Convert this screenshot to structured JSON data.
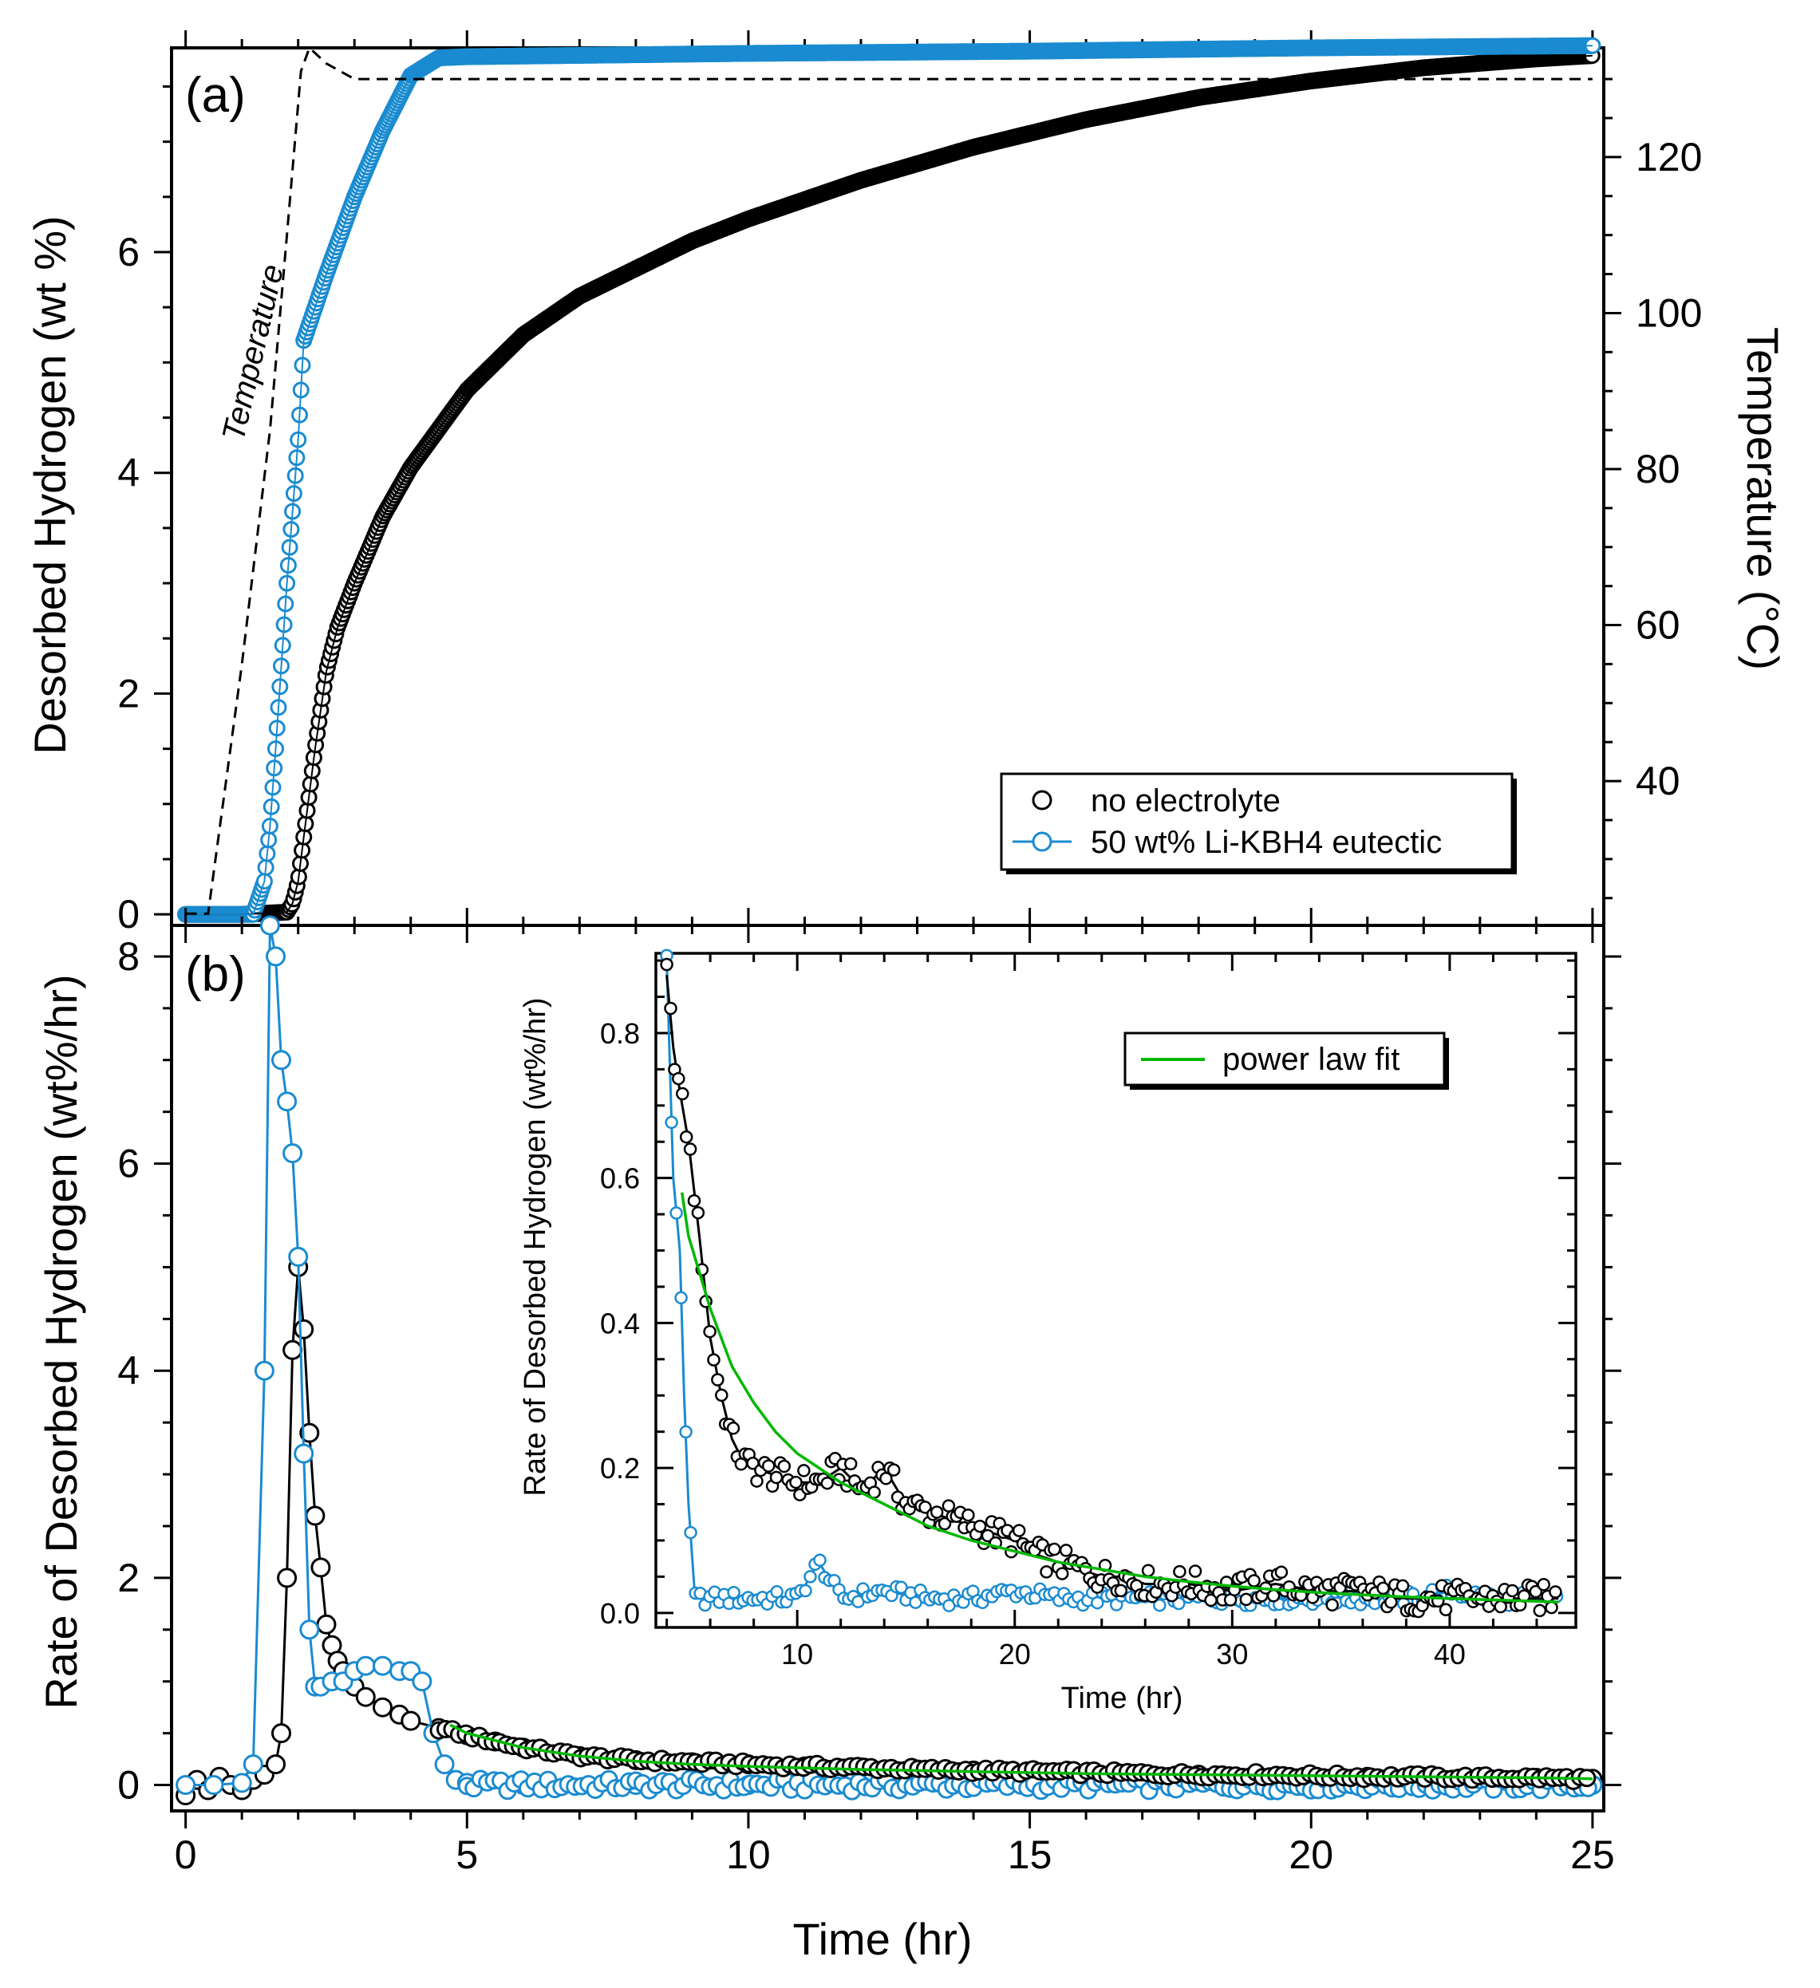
{
  "chart_data": [
    {
      "panel": "(a)",
      "type": "line",
      "xlabel": "Time (hr)",
      "ylabel": "Desorbed Hydrogen (wt %)",
      "ylabel_right": "Temperature (°C)",
      "xlim": [
        -0.25,
        25.2
      ],
      "ylim": [
        -0.1,
        7.85
      ],
      "ylim_right": [
        21.5,
        134
      ],
      "x_ticks": [
        0,
        5,
        10,
        15,
        20,
        25
      ],
      "y_ticks": [
        0,
        2,
        4,
        6
      ],
      "y_tick_labels": [
        "0",
        "2",
        "4",
        "6"
      ],
      "y_ticks_right": [
        40,
        60,
        80,
        100,
        120
      ],
      "y_tick_labels_right": [
        "40",
        "60",
        "80",
        "100",
        "120"
      ],
      "temperature_label": "Temperature",
      "legend": {
        "placement": "bottom-right",
        "entries": [
          {
            "label": "no electrolyte",
            "color": "#000000"
          },
          {
            "label": "50 wt% Li-KBH4 eutectic",
            "color": "#1a8bd0"
          }
        ]
      },
      "series": [
        {
          "name": "no electrolyte",
          "color": "#000000",
          "x": [
            0,
            1.0,
            1.8,
            1.9,
            2.0,
            2.1,
            2.2,
            2.3,
            2.5,
            2.7,
            3.0,
            3.5,
            4.0,
            5.0,
            6.0,
            7.0,
            8.0,
            9.0,
            10.0,
            12.0,
            14.0,
            16.0,
            18.0,
            20.0,
            22.0,
            24.0,
            25.0
          ],
          "y": [
            0,
            0,
            0.02,
            0.1,
            0.3,
            0.7,
            1.1,
            1.5,
            2.2,
            2.6,
            3.0,
            3.6,
            4.05,
            4.75,
            5.25,
            5.6,
            5.85,
            6.1,
            6.3,
            6.65,
            6.95,
            7.2,
            7.4,
            7.55,
            7.67,
            7.75,
            7.78
          ]
        },
        {
          "name": "50 wt% Li-KBH4 eutectic",
          "color": "#1a8bd0",
          "x": [
            0,
            1.2,
            1.4,
            1.5,
            1.6,
            1.8,
            2.0,
            2.1,
            2.2,
            2.5,
            3.0,
            3.5,
            4.0,
            4.5,
            5.0,
            10.0,
            15.0,
            20.0,
            25.0
          ],
          "y": [
            0,
            0,
            0.3,
            0.8,
            1.5,
            3.0,
            4.3,
            5.2,
            5.35,
            5.8,
            6.5,
            7.1,
            7.6,
            7.76,
            7.77,
            7.8,
            7.82,
            7.85,
            7.87
          ]
        },
        {
          "name": "Temperature",
          "axis": "right",
          "style": "dashed",
          "color": "#000000",
          "x": [
            0,
            0.4,
            1.0,
            1.5,
            1.8,
            2.05,
            2.2,
            2.5,
            3.0,
            25.0
          ],
          "y": [
            23,
            23,
            55,
            85,
            110,
            131,
            134,
            132,
            130,
            130
          ]
        }
      ]
    },
    {
      "panel": "(b)",
      "type": "line",
      "xlabel": "Time (hr)",
      "ylabel": "Rate of Desorbed Hydrogen (wt%/hr)",
      "xlim": [
        -0.25,
        25.2
      ],
      "ylim": [
        -0.25,
        8.3
      ],
      "x_ticks": [
        0,
        5,
        10,
        15,
        20,
        25
      ],
      "x_tick_labels": [
        "0",
        "5",
        "10",
        "15",
        "20",
        "25"
      ],
      "y_ticks": [
        0,
        2,
        4,
        6,
        8
      ],
      "y_tick_labels": [
        "0",
        "2",
        "4",
        "6",
        "8"
      ],
      "series": [
        {
          "name": "no electrolyte",
          "color": "#000000",
          "x": [
            0,
            0.2,
            0.4,
            0.6,
            0.8,
            1.0,
            1.2,
            1.4,
            1.6,
            1.7,
            1.8,
            1.9,
            2.0,
            2.1,
            2.2,
            2.3,
            2.4,
            2.5,
            2.6,
            2.7,
            2.8,
            3.0,
            3.2,
            3.5,
            3.8,
            4.0,
            4.5,
            5.0,
            5.5,
            6.0,
            7.0,
            8.0,
            9.0,
            10.0,
            11.0,
            12.0,
            13.0,
            14.0,
            15.0,
            16.0,
            17.0,
            18.0,
            19.0,
            20.0,
            21.0,
            22.0,
            23.0,
            24.0,
            25.0
          ],
          "y": [
            -0.1,
            0.05,
            -0.05,
            0.08,
            0.0,
            -0.05,
            0.05,
            0.1,
            0.2,
            0.5,
            2.0,
            4.2,
            5.0,
            4.4,
            3.4,
            2.6,
            2.1,
            1.55,
            1.35,
            1.2,
            1.1,
            0.95,
            0.85,
            0.75,
            0.68,
            0.62,
            0.55,
            0.48,
            0.42,
            0.36,
            0.28,
            0.24,
            0.22,
            0.2,
            0.18,
            0.17,
            0.15,
            0.14,
            0.13,
            0.12,
            0.11,
            0.1,
            0.1,
            0.09,
            0.08,
            0.08,
            0.07,
            0.07,
            0.06
          ]
        },
        {
          "name": "50 wt% Li-KBH4 eutectic",
          "color": "#1a8bd0",
          "x": [
            0,
            0.5,
            1.0,
            1.2,
            1.4,
            1.5,
            1.6,
            1.7,
            1.8,
            1.9,
            2.0,
            2.1,
            2.2,
            2.3,
            2.4,
            2.6,
            2.8,
            3.0,
            3.2,
            3.5,
            3.8,
            4.0,
            4.2,
            4.4,
            4.6,
            4.8,
            5.0,
            6.0,
            8.0,
            10.0,
            12.0,
            15.0,
            20.0,
            25.0
          ],
          "y": [
            0,
            0,
            0.02,
            0.2,
            4.0,
            8.3,
            8.0,
            7.0,
            6.6,
            6.1,
            5.1,
            3.2,
            1.5,
            0.95,
            0.95,
            1.0,
            1.0,
            1.1,
            1.15,
            1.15,
            1.1,
            1.1,
            1.0,
            0.5,
            0.2,
            0.05,
            0.02,
            0.0,
            0.0,
            0.0,
            0.0,
            0.0,
            0.0,
            0.0
          ]
        },
        {
          "name": "power law fit",
          "color": "#00b800",
          "x": [
            4.7,
            5.0,
            6.0,
            7.0,
            8.0,
            9.0,
            10.0,
            12.0,
            14.0,
            16.0,
            18.0,
            20.0,
            22.0,
            24.0,
            25.0
          ],
          "y": [
            0.58,
            0.5,
            0.36,
            0.28,
            0.23,
            0.2,
            0.18,
            0.15,
            0.13,
            0.11,
            0.1,
            0.09,
            0.08,
            0.07,
            0.06
          ]
        }
      ]
    },
    {
      "panel": "inset",
      "type": "line",
      "xlabel": "Time (hr)",
      "ylabel": "Rate of Desorbed Hydrogen (wt%/hr)",
      "xlim": [
        3.5,
        45.8
      ],
      "ylim": [
        -0.02,
        0.91
      ],
      "x_ticks": [
        10,
        20,
        30,
        40
      ],
      "x_tick_labels": [
        "10",
        "20",
        "30",
        "40"
      ],
      "y_ticks": [
        0.0,
        0.2,
        0.4,
        0.6,
        0.8
      ],
      "y_tick_labels": [
        "0.0",
        "0.2",
        "0.4",
        "0.6",
        "0.8"
      ],
      "legend": {
        "placement": "top-right",
        "entries": [
          {
            "label": "power law fit",
            "color": "#00b800"
          }
        ]
      },
      "series": [
        {
          "name": "no electrolyte",
          "color": "#000000",
          "x": [
            4.0,
            4.3,
            4.6,
            5.0,
            5.5,
            6.0,
            6.5,
            7.0,
            7.5,
            8.0,
            9.0,
            10.0,
            11.0,
            12.0,
            13.0,
            14.0,
            15.0,
            16.0,
            17.0,
            18.0,
            19.0,
            20.0,
            21.0,
            22.0,
            23.0,
            24.0,
            25.0,
            26.0,
            28.0,
            30.0,
            32.0,
            34.0,
            36.0,
            38.0,
            40.0,
            42.0,
            44.0,
            45.0
          ],
          "y": [
            0.88,
            0.78,
            0.72,
            0.65,
            0.52,
            0.38,
            0.3,
            0.24,
            0.21,
            0.2,
            0.19,
            0.18,
            0.18,
            0.2,
            0.17,
            0.2,
            0.15,
            0.14,
            0.13,
            0.12,
            0.11,
            0.1,
            0.08,
            0.07,
            0.06,
            0.05,
            0.05,
            0.04,
            0.04,
            0.03,
            0.04,
            0.03,
            0.03,
            0.02,
            0.02,
            0.02,
            0.02,
            0.02
          ]
        },
        {
          "name": "50 wt% Li-KBH4 eutectic",
          "color": "#1a8bd0",
          "x": [
            4.0,
            4.3,
            4.6,
            4.8,
            5.0,
            5.3,
            6.0,
            8.0,
            10.0,
            11.0,
            12.0,
            14.0,
            16.0,
            18.0,
            20.0,
            22.0,
            24.0,
            26.0,
            28.0,
            30.0,
            32.0,
            34.0,
            36.0,
            38.0,
            40.0,
            42.0,
            44.0,
            45.0
          ],
          "y": [
            0.9,
            0.6,
            0.5,
            0.3,
            0.15,
            0.02,
            0.02,
            0.02,
            0.02,
            0.07,
            0.02,
            0.03,
            0.02,
            0.02,
            0.03,
            0.02,
            0.02,
            0.02,
            0.02,
            0.02,
            0.02,
            0.02,
            0.02,
            0.02,
            0.03,
            0.02,
            0.02,
            0.02
          ]
        },
        {
          "name": "power law fit",
          "color": "#00b800",
          "x": [
            4.7,
            5.0,
            6.0,
            7.0,
            8.0,
            9.0,
            10.0,
            12.0,
            14.0,
            16.0,
            18.0,
            20.0,
            22.0,
            24.0,
            26.0,
            28.0,
            30.0,
            32.0,
            34.0,
            36.0,
            38.0,
            40.0,
            42.0,
            44.0,
            45.0
          ],
          "y": [
            0.58,
            0.52,
            0.42,
            0.34,
            0.29,
            0.25,
            0.22,
            0.18,
            0.15,
            0.12,
            0.1,
            0.085,
            0.07,
            0.06,
            0.05,
            0.043,
            0.037,
            0.032,
            0.028,
            0.025,
            0.022,
            0.02,
            0.018,
            0.016,
            0.015
          ]
        }
      ]
    }
  ]
}
